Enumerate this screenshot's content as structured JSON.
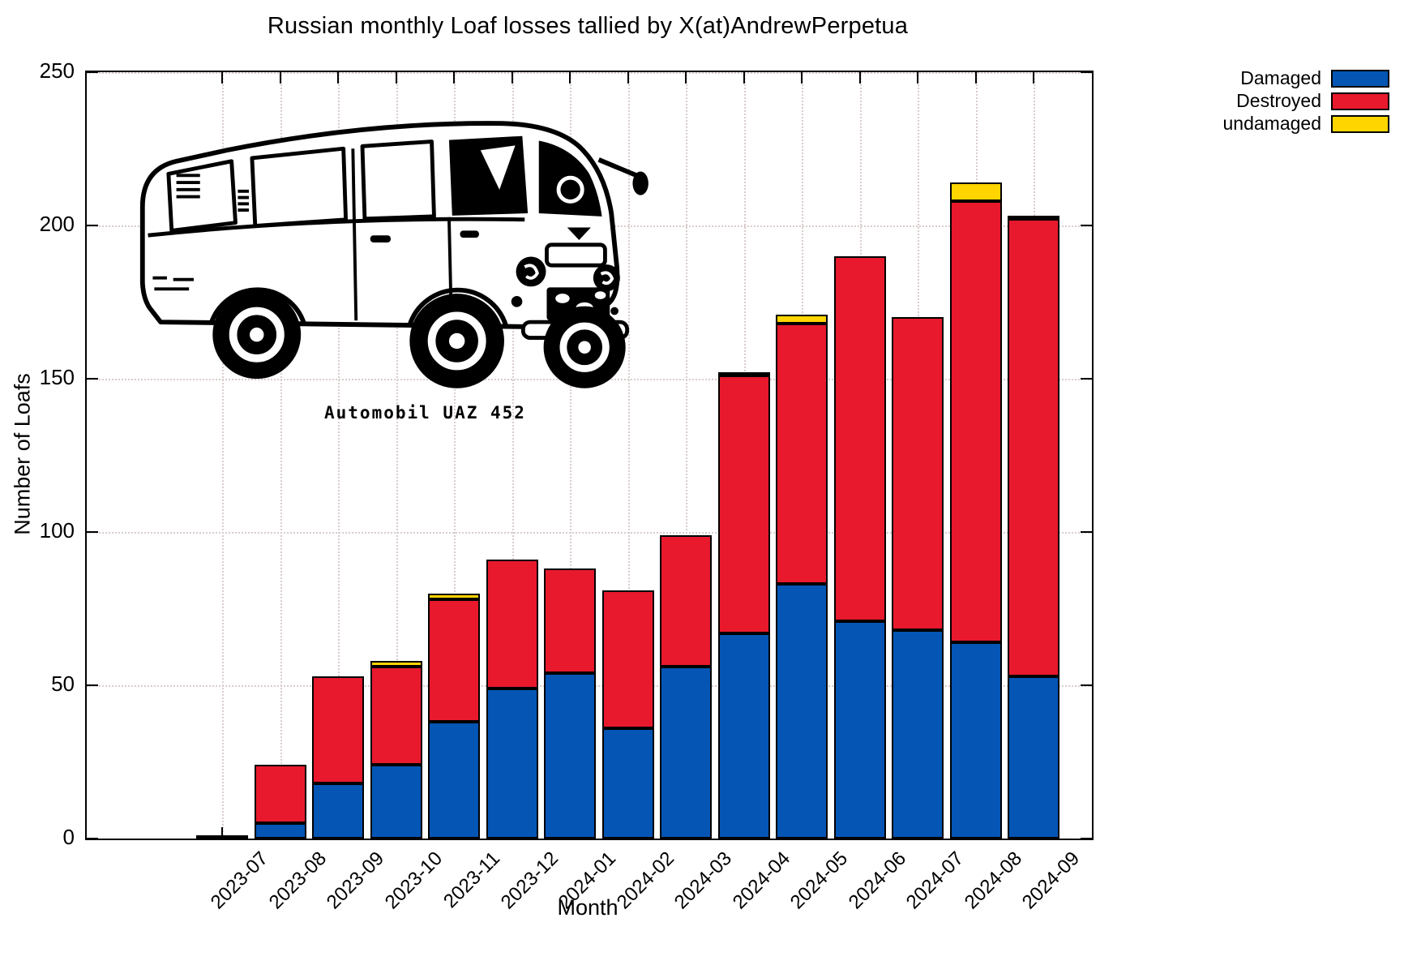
{
  "title": "Russian monthly Loaf losses tallied by X(at)AndrewPerpetua",
  "axes": {
    "ylabel": "Number of Loafs",
    "xlabel": "Month"
  },
  "watermark": "Automobil UAZ 452",
  "legend": [
    {
      "label": "Damaged",
      "color": "#0455B4"
    },
    {
      "label": "Destroyed",
      "color": "#E8192C"
    },
    {
      "label": "undamaged",
      "color": "#FFD500"
    }
  ],
  "chart_data": {
    "type": "bar",
    "stacked": true,
    "title": "Russian monthly Loaf losses tallied by X(at)AndrewPerpetua",
    "xlabel": "Month",
    "ylabel": "Number of Loafs",
    "ylim": [
      0,
      250
    ],
    "yticks": [
      0,
      50,
      100,
      150,
      200,
      250
    ],
    "grid": true,
    "legend_position": "outside-top-right",
    "categories": [
      "2023-07",
      "2023-08",
      "2023-09",
      "2023-10",
      "2023-11",
      "2023-12",
      "2024-01",
      "2024-02",
      "2024-03",
      "2024-04",
      "2024-05",
      "2024-06",
      "2024-07",
      "2024-08",
      "2024-09"
    ],
    "series": [
      {
        "name": "Damaged",
        "color": "#0455B4",
        "values": [
          1,
          5,
          18,
          24,
          38,
          49,
          54,
          36,
          56,
          67,
          83,
          71,
          68,
          64,
          53
        ]
      },
      {
        "name": "Destroyed",
        "color": "#E8192C",
        "values": [
          0,
          19,
          35,
          32,
          40,
          42,
          34,
          45,
          43,
          84,
          85,
          119,
          102,
          144,
          149
        ]
      },
      {
        "name": "undamaged",
        "color": "#FFD500",
        "values": [
          0,
          0,
          0,
          2,
          2,
          0,
          0,
          0,
          0,
          1,
          3,
          0,
          0,
          6,
          1
        ]
      }
    ],
    "totals": [
      1,
      24,
      53,
      58,
      80,
      91,
      88,
      81,
      99,
      152,
      171,
      190,
      170,
      214,
      203
    ]
  }
}
